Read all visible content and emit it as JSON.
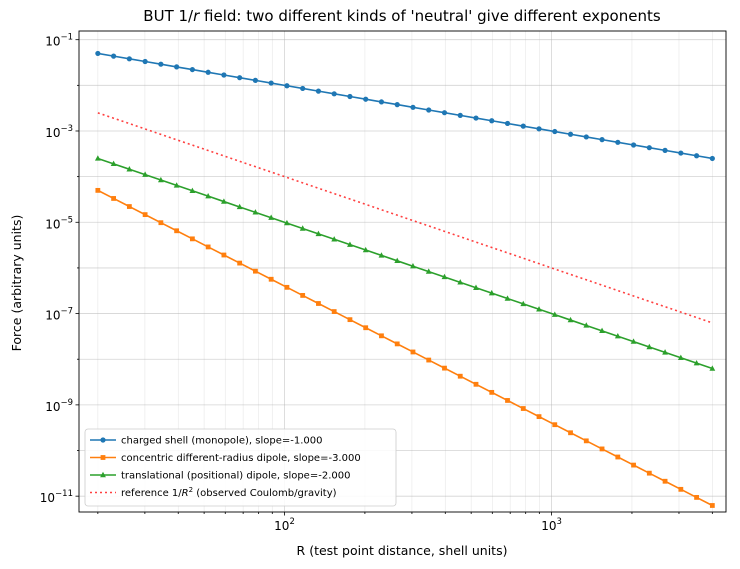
{
  "chart_data": {
    "type": "line",
    "title_prefix": "BUT 1/",
    "title_italic": "r",
    "title_suffix": " field: two different kinds of 'neutral' give different exponents",
    "xlabel": "R (test point distance, shell units)",
    "ylabel": "Force (arbitrary units)",
    "x_scale": "log",
    "y_scale": "log",
    "xlim": [
      17,
      4500
    ],
    "ylim": [
      4.5e-12,
      0.155
    ],
    "x_ticks": [
      {
        "value": 100,
        "base": "10",
        "exp": "2"
      },
      {
        "value": 1000,
        "base": "10",
        "exp": "3"
      }
    ],
    "y_ticks": [
      {
        "value": 0.1,
        "base": "10",
        "exp": "−1"
      },
      {
        "value": 0.001,
        "base": "10",
        "exp": "−3"
      },
      {
        "value": 1e-05,
        "base": "10",
        "exp": "−5"
      },
      {
        "value": 1e-07,
        "base": "10",
        "exp": "−7"
      },
      {
        "value": 1e-09,
        "base": "10",
        "exp": "−9"
      },
      {
        "value": 1e-11,
        "base": "10",
        "exp": "−11"
      }
    ],
    "grid": true,
    "legend_position": "lower-left",
    "x_range": [
      20,
      4000
    ],
    "n_points": 40,
    "series": [
      {
        "name": "charged shell (monopole), slope=-1.000",
        "start": 0.05,
        "slope": -1,
        "color": "#1f77b4",
        "marker": "circle",
        "style": "solid"
      },
      {
        "name": "concentric different-radius dipole, slope=-3.000",
        "start": 5e-05,
        "slope": -3,
        "color": "#ff7f0e",
        "marker": "square",
        "style": "solid"
      },
      {
        "name": "translational (positional) dipole, slope=-2.000",
        "start": 0.00025,
        "slope": -2,
        "color": "#2ca02c",
        "marker": "triangle",
        "style": "solid"
      },
      {
        "name_prefix": "reference 1/",
        "name_italic": "R",
        "name_sup": "2",
        "name_suffix": " (observed Coulomb/gravity)",
        "start": 0.0025,
        "slope": -2,
        "color": "#ff0000",
        "marker": "none",
        "style": "dotted"
      }
    ]
  }
}
